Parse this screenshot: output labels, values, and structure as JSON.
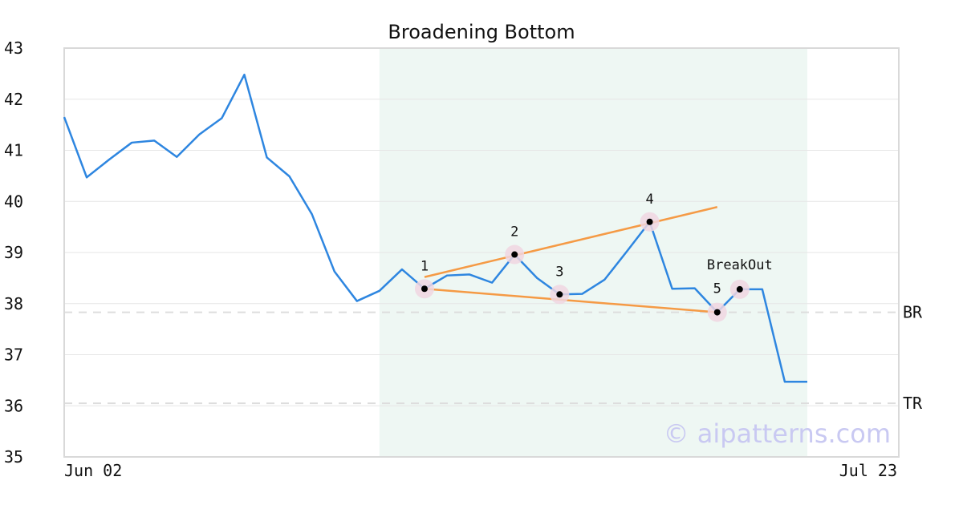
{
  "chart_data": {
    "type": "line",
    "title": "Broadening Bottom",
    "x_tick_labels": [
      "Jun 02",
      "Jul 23"
    ],
    "ylim": [
      35,
      43
    ],
    "y_ticks": [
      35,
      36,
      37,
      38,
      39,
      40,
      41,
      42,
      43
    ],
    "grid": true,
    "series": [
      {
        "color": "#2e86e0",
        "values": [
          41.65,
          40.47,
          40.82,
          41.15,
          41.19,
          40.87,
          41.31,
          41.63,
          42.48,
          40.86,
          40.49,
          39.75,
          38.63,
          38.05,
          38.25,
          38.67,
          38.29,
          38.55,
          38.57,
          38.41,
          38.96,
          38.5,
          38.18,
          38.19,
          38.47,
          39.03,
          39.6,
          38.29,
          38.3,
          37.83,
          38.28,
          38.28,
          36.47,
          36.47
        ]
      }
    ],
    "highlight_range": {
      "start_index": 14,
      "end_index": 33,
      "color": "#eef7f3"
    },
    "trend_lines": [
      {
        "color": "#f59a45",
        "from": {
          "index": 16,
          "value": 38.52
        },
        "to": {
          "index": 29,
          "value": 39.89
        }
      },
      {
        "color": "#f59a45",
        "from": {
          "index": 16,
          "value": 38.29
        },
        "to": {
          "index": 29,
          "value": 37.83
        }
      }
    ],
    "pattern_points": [
      {
        "label": "1",
        "index": 16,
        "value": 38.29
      },
      {
        "label": "2",
        "index": 20,
        "value": 38.96
      },
      {
        "label": "3",
        "index": 22,
        "value": 38.18
      },
      {
        "label": "4",
        "index": 26,
        "value": 39.6
      },
      {
        "label": "5",
        "index": 29,
        "value": 37.83
      },
      {
        "label": "BreakOut",
        "index": 30,
        "value": 38.28
      }
    ],
    "reference_lines": [
      {
        "label": "BR",
        "value": 37.83
      },
      {
        "label": "TR",
        "value": 36.05
      }
    ]
  },
  "watermark": "© aipatterns.com",
  "colors": {
    "line": "#2e86e0",
    "trend": "#f59a45",
    "highlight": "#eef7f3",
    "marker_ring": "#f0d6e0",
    "grid": "#e6e6e6",
    "reference": "#dddddd"
  }
}
